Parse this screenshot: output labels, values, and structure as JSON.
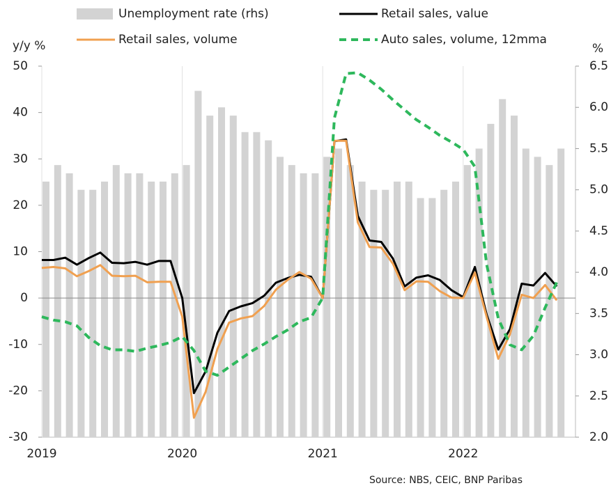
{
  "chart_data": {
    "type": "bar-line",
    "y_label": "y/y %",
    "y2_label": "%",
    "source": "Source: NBS, CEIC, BNP Paribas",
    "categories": [
      "2019",
      null,
      null,
      null,
      null,
      null,
      null,
      null,
      null,
      null,
      null,
      null,
      "2020",
      null,
      null,
      null,
      null,
      null,
      null,
      null,
      null,
      null,
      null,
      null,
      "2021",
      null,
      null,
      null,
      null,
      null,
      null,
      null,
      null,
      null,
      null,
      null,
      "2022",
      null,
      null,
      null,
      null,
      null,
      null,
      null,
      null
    ],
    "series": [
      {
        "name": "Unemployment rate (rhs)",
        "type": "bar",
        "axis": "y2",
        "color": "#d3d3d3",
        "values": [
          5.1,
          5.3,
          5.2,
          5.0,
          5.0,
          5.1,
          5.3,
          5.2,
          5.2,
          5.1,
          5.1,
          5.2,
          5.3,
          6.2,
          5.9,
          6.0,
          5.9,
          5.7,
          5.7,
          5.6,
          5.4,
          5.3,
          5.2,
          5.2,
          5.4,
          5.5,
          5.3,
          5.1,
          5.0,
          5.0,
          5.1,
          5.1,
          4.9,
          4.9,
          5.0,
          5.1,
          5.3,
          5.5,
          5.8,
          6.1,
          5.9,
          5.5,
          5.4,
          5.3,
          5.5
        ]
      },
      {
        "name": "Retail sales, value",
        "type": "line",
        "color": "#000000",
        "values": [
          8.2,
          8.2,
          8.7,
          7.2,
          8.6,
          9.8,
          7.6,
          7.5,
          7.8,
          7.2,
          8.0,
          8.0,
          0,
          -20.5,
          -15.8,
          -7.5,
          -2.8,
          -1.8,
          -1.1,
          0.5,
          3.3,
          4.3,
          5.0,
          4.6,
          0,
          33.8,
          34.2,
          17.7,
          12.4,
          12.1,
          8.5,
          2.5,
          4.4,
          4.9,
          3.9,
          1.7,
          0.2,
          6.7,
          -3.5,
          -11.1,
          -6.7,
          3.1,
          2.7,
          5.4,
          2.5
        ]
      },
      {
        "name": "Retail sales, volume",
        "type": "line",
        "color": "#f0a050",
        "values": [
          6.5,
          6.7,
          6.4,
          4.7,
          5.8,
          7.1,
          4.8,
          4.7,
          4.8,
          3.4,
          3.5,
          3.5,
          -4.0,
          -25.8,
          -20.2,
          -11.0,
          -5.3,
          -4.4,
          -3.9,
          -1.7,
          1.8,
          3.9,
          5.6,
          4.2,
          0,
          33.9,
          33.9,
          16.3,
          11.0,
          10.9,
          7.4,
          1.7,
          3.6,
          3.5,
          1.5,
          0.1,
          0,
          5.5,
          -4.0,
          -13.1,
          -7.8,
          0.7,
          0,
          2.8,
          -0.5
        ]
      },
      {
        "name": "Auto sales, volume, 12mma",
        "type": "line",
        "axis": "y2",
        "color": "#2eb85c",
        "dashed": true,
        "values": [
          3.46,
          3.42,
          3.4,
          3.35,
          3.21,
          3.11,
          3.06,
          3.06,
          3.04,
          3.08,
          3.11,
          3.15,
          3.22,
          3.05,
          2.8,
          2.75,
          2.85,
          2.95,
          3.05,
          3.13,
          3.22,
          3.3,
          3.4,
          3.45,
          3.69,
          5.87,
          6.41,
          6.42,
          6.33,
          6.22,
          6.09,
          5.97,
          5.85,
          5.76,
          5.66,
          5.58,
          5.49,
          5.28,
          4.1,
          3.44,
          3.12,
          3.06,
          3.23,
          3.57,
          3.88
        ]
      }
    ],
    "ylim": [
      -30,
      50
    ],
    "yticks": [
      -30,
      -20,
      -10,
      0,
      10,
      20,
      30,
      40,
      50
    ],
    "y2lim": [
      2,
      6.5
    ],
    "y2ticks": [
      {
        "value": 2,
        "label": "2.0"
      },
      2.5,
      {
        "value": 3,
        "label": "3.0"
      },
      3.5,
      {
        "value": 4,
        "label": "4.0"
      },
      4.5,
      {
        "value": 5,
        "label": "5.0"
      },
      5.5,
      {
        "value": 6,
        "label": "6.0"
      },
      6.5
    ],
    "legend": "top"
  }
}
